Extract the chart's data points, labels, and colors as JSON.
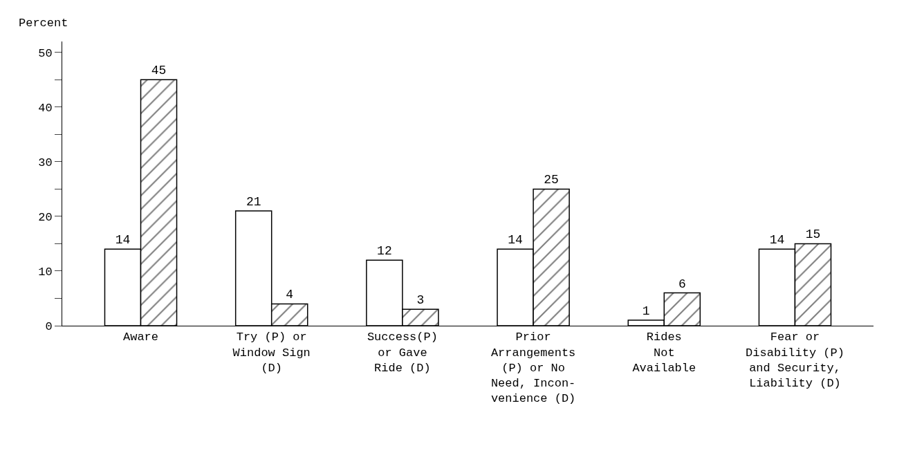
{
  "chart_data": {
    "type": "bar",
    "ylabel": "Percent",
    "categories": [
      "Aware",
      "Try (P) or\nWindow Sign\n(D)",
      "Success(P)\nor Gave\nRide (D)",
      "Prior\nArrangements\n(P) or No\nNeed, Incon-\nvenience (D)",
      "Rides\nNot\nAvailable",
      "Fear or\nDisability (P)\nand Security,\nLiability (D)"
    ],
    "series": [
      {
        "color": "#000000",
        "values": [
          14,
          21,
          12,
          14,
          1,
          14
        ]
      },
      {
        "color": "#000000",
        "values": [
          45,
          4,
          3,
          25,
          6,
          15
        ]
      }
    ],
    "ylim": [
      0,
      52
    ],
    "yticks": [
      0,
      {
        "value": 5,
        "label": null
      },
      10,
      {
        "value": 15,
        "label": null
      },
      20,
      {
        "value": 25,
        "label": null
      },
      30,
      {
        "value": 35,
        "label": null
      },
      40,
      {
        "value": 45,
        "label": null
      },
      50
    ],
    "data_labels": true,
    "legend": false
  }
}
